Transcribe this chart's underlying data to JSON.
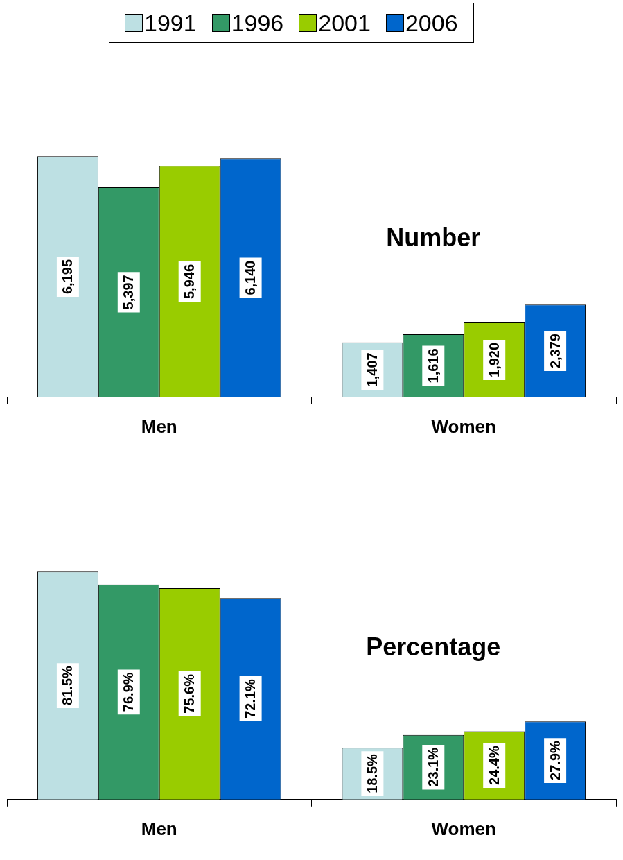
{
  "chart_data": [
    {
      "type": "bar",
      "title": "Number",
      "categories": [
        "Men",
        "Women"
      ],
      "legend": "top",
      "series": [
        {
          "name": "1991",
          "color": "#bde0e3",
          "values": [
            6195,
            1407
          ],
          "value_labels": [
            "6,195",
            "1,407"
          ]
        },
        {
          "name": "1996",
          "color": "#339966",
          "values": [
            5397,
            1616
          ],
          "value_labels": [
            "5,397",
            "1,616"
          ]
        },
        {
          "name": "2001",
          "color": "#99cc00",
          "values": [
            5946,
            1920
          ],
          "value_labels": [
            "5,946",
            "1,920"
          ]
        },
        {
          "name": "2006",
          "color": "#0066cc",
          "values": [
            6140,
            2379
          ],
          "value_labels": [
            "6,140",
            "2,379"
          ]
        }
      ]
    },
    {
      "type": "bar",
      "title": "Percentage",
      "categories": [
        "Men",
        "Women"
      ],
      "series": [
        {
          "color": "#bde0e3",
          "values": [
            81.5,
            18.5
          ],
          "value_labels": [
            "81.5%",
            "18.5%"
          ]
        },
        {
          "color": "#339966",
          "values": [
            76.9,
            23.1
          ],
          "value_labels": [
            "76.9%",
            "23.1%"
          ]
        },
        {
          "color": "#99cc00",
          "values": [
            75.6,
            24.4
          ],
          "value_labels": [
            "75.6%",
            "24.4%"
          ]
        },
        {
          "color": "#0066cc",
          "values": [
            72.1,
            27.9
          ],
          "value_labels": [
            "72.1%",
            "27.9%"
          ]
        }
      ]
    }
  ]
}
